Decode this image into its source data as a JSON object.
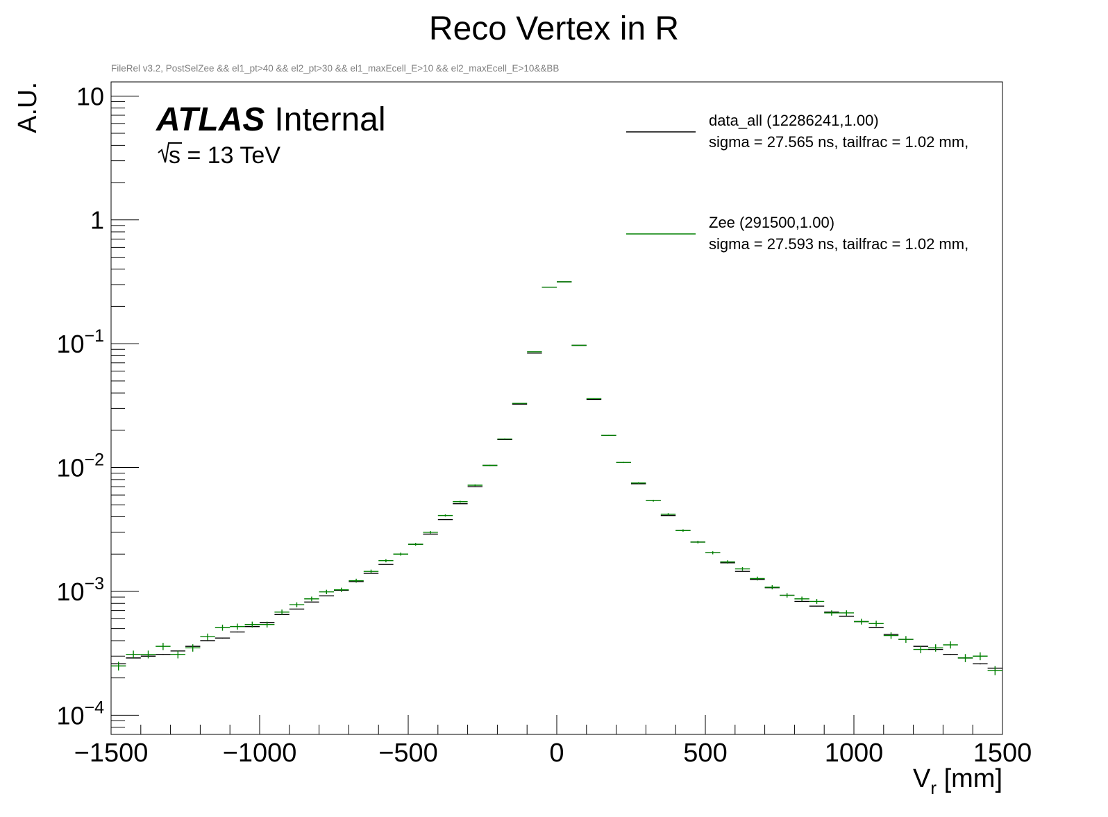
{
  "chart_data": {
    "type": "scatter",
    "title": "Reco Vertex in R",
    "subtitle": "FileRel v3.2, PostSelZee && el1_pt>40 && el2_pt>30 && el1_maxEcell_E>10 && el2_maxEcell_E>10&&BB",
    "xlabel_main": "V",
    "xlabel_sub": "r",
    "xlabel_unit": " [mm]",
    "ylabel": "A.U.",
    "xlim": [
      -1500,
      1500
    ],
    "ylim": [
      7e-05,
      13
    ],
    "yscale": "log",
    "bin_width": 50,
    "x_tick_labels": [
      {
        "value": -1500,
        "label": "−1500"
      },
      {
        "value": -1000,
        "label": "−1000"
      },
      {
        "value": -500,
        "label": "−500"
      },
      {
        "value": 0,
        "label": "0"
      },
      {
        "value": 500,
        "label": "500"
      },
      {
        "value": 1000,
        "label": "1000"
      },
      {
        "value": 1500,
        "label": "1500"
      }
    ],
    "y_tick_labels": [
      {
        "value": 10,
        "base": "10",
        "exp": ""
      },
      {
        "value": 1,
        "base": "1",
        "exp": ""
      },
      {
        "value": 0.1,
        "base": "10",
        "exp": "−1"
      },
      {
        "value": 0.01,
        "base": "10",
        "exp": "−2"
      },
      {
        "value": 0.001,
        "base": "10",
        "exp": "−3"
      },
      {
        "value": 0.0001,
        "base": "10",
        "exp": "−4"
      }
    ],
    "atlas_label": "ATLAS",
    "atlas_status": "Internal",
    "energy_label": "s = 13 TeV",
    "x": [
      -1475,
      -1425,
      -1375,
      -1325,
      -1275,
      -1225,
      -1175,
      -1125,
      -1075,
      -1025,
      -975,
      -925,
      -875,
      -825,
      -775,
      -725,
      -675,
      -625,
      -575,
      -525,
      -475,
      -425,
      -375,
      -325,
      -275,
      -225,
      -175,
      -125,
      -75,
      -25,
      25,
      75,
      125,
      175,
      225,
      275,
      325,
      375,
      425,
      475,
      525,
      575,
      625,
      675,
      725,
      775,
      825,
      875,
      925,
      975,
      1025,
      1075,
      1125,
      1175,
      1225,
      1275,
      1325,
      1375,
      1425,
      1475
    ],
    "series": [
      {
        "name": "data_all",
        "legend_label": "data_all  (12286241,1.00)",
        "legend_sub": "sigma = 27.565 ns, tailfrac = 1.02 mm,",
        "color": "#000000",
        "values": [
          0.00026,
          0.00029,
          0.0003,
          0.00031,
          0.00033,
          0.00036,
          0.0004,
          0.00042,
          0.00047,
          0.00052,
          0.00056,
          0.00065,
          0.00072,
          0.00082,
          0.00092,
          0.00102,
          0.0012,
          0.0014,
          0.00165,
          0.002,
          0.0024,
          0.0029,
          0.0038,
          0.0051,
          0.007,
          0.0104,
          0.0168,
          0.0325,
          0.084,
          0.286,
          0.316,
          0.097,
          0.0355,
          0.0182,
          0.011,
          0.0074,
          0.0054,
          0.0041,
          0.0031,
          0.0025,
          0.00205,
          0.0017,
          0.00145,
          0.00125,
          0.00107,
          0.00093,
          0.00083,
          0.00076,
          0.00068,
          0.00063,
          0.00057,
          0.00051,
          0.00045,
          0.00041,
          0.00036,
          0.00034,
          0.00031,
          0.00029,
          0.00026,
          0.00024
        ]
      },
      {
        "name": "Zee",
        "legend_label": "Zee  (291500,1.00)",
        "legend_sub": "sigma = 27.593 ns, tailfrac = 1.02 mm,",
        "color": "#008000",
        "values": [
          0.00025,
          0.00031,
          0.00031,
          0.00036,
          0.00031,
          0.00035,
          0.00043,
          0.00051,
          0.00052,
          0.00054,
          0.00054,
          0.00068,
          0.00078,
          0.00087,
          0.00099,
          0.00103,
          0.00122,
          0.00145,
          0.00177,
          0.002,
          0.0024,
          0.003,
          0.0041,
          0.0053,
          0.0072,
          0.0104,
          0.017,
          0.033,
          0.086,
          0.286,
          0.316,
          0.097,
          0.036,
          0.0182,
          0.011,
          0.0075,
          0.0054,
          0.0042,
          0.0031,
          0.0025,
          0.00205,
          0.00173,
          0.00152,
          0.00127,
          0.00108,
          0.00093,
          0.00087,
          0.00083,
          0.00067,
          0.00067,
          0.00057,
          0.00055,
          0.00044,
          0.00041,
          0.00034,
          0.00035,
          0.00037,
          0.00029,
          0.0003,
          0.00023
        ]
      }
    ]
  }
}
